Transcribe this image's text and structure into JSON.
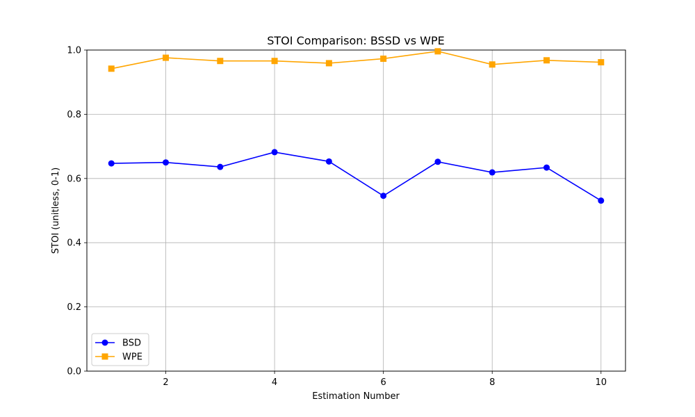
{
  "chart_data": {
    "type": "line",
    "title": "STOI Comparison: BSSD vs WPE",
    "xlabel": "Estimation Number",
    "ylabel": "STOI (unitless, 0-1)",
    "xlim": [
      0.55,
      10.45
    ],
    "ylim": [
      0.0,
      1.0
    ],
    "x_ticks": [
      2,
      4,
      6,
      8,
      10
    ],
    "y_ticks": [
      0.0,
      0.2,
      0.4,
      0.6,
      0.8,
      1.0
    ],
    "x_tick_labels": [
      "2",
      "4",
      "6",
      "8",
      "10"
    ],
    "y_tick_labels": [
      "0.0",
      "0.2",
      "0.4",
      "0.6",
      "0.8",
      "1.0"
    ],
    "grid": true,
    "legend_position": "lower-left",
    "x": [
      1,
      2,
      3,
      4,
      5,
      6,
      7,
      8,
      9,
      10
    ],
    "series": [
      {
        "name": "BSD",
        "marker": "circle",
        "color": "#0000ff",
        "values": [
          0.647,
          0.65,
          0.636,
          0.682,
          0.653,
          0.546,
          0.652,
          0.619,
          0.634,
          0.531
        ]
      },
      {
        "name": "WPE",
        "marker": "square",
        "color": "#ffa500",
        "values": [
          0.942,
          0.976,
          0.966,
          0.966,
          0.959,
          0.973,
          0.996,
          0.955,
          0.968,
          0.962
        ]
      }
    ]
  }
}
